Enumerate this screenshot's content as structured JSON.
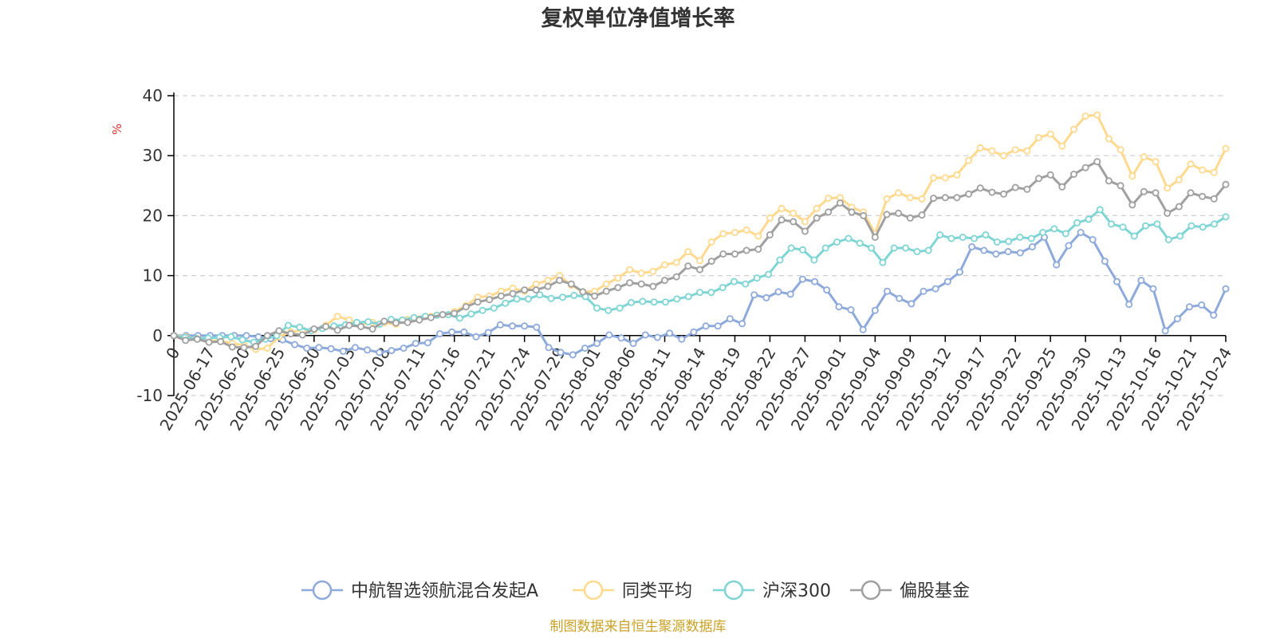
{
  "chart_data": {
    "type": "line",
    "title": "复权单位净值增长率",
    "ylabel": "%",
    "ylim": [
      -10,
      40
    ],
    "yticks": [
      -10,
      0,
      10,
      20,
      30,
      40
    ],
    "grid": true,
    "legend_position": "bottom-center",
    "x_tick_labels": [
      "0",
      "2025-06-17",
      "2025-06-20",
      "2025-06-25",
      "2025-06-30",
      "2025-07-03",
      "2025-07-08",
      "2025-07-11",
      "2025-07-16",
      "2025-07-21",
      "2025-07-24",
      "2025-07-29",
      "2025-08-01",
      "2025-08-06",
      "2025-08-11",
      "2025-08-14",
      "2025-08-19",
      "2025-08-22",
      "2025-08-27",
      "2025-09-01",
      "2025-09-04",
      "2025-09-09",
      "2025-09-12",
      "2025-09-17",
      "2025-09-22",
      "2025-09-25",
      "2025-09-30",
      "2025-10-13",
      "2025-10-16",
      "2025-10-21",
      "2025-10-24"
    ],
    "series": [
      {
        "name": "中航智选领航混合发起A",
        "color": "#8eaadb",
        "values": [
          0,
          0,
          0,
          0,
          0,
          0,
          0,
          -0.2,
          -0.5,
          -0.7,
          -1.5,
          -2.1,
          -2.0,
          -2.2,
          -2.6,
          -2.0,
          -2.4,
          -2.8,
          -2.5,
          -2.1,
          -1.3,
          -1.2,
          0.3,
          0.6,
          0.6,
          -0.2,
          0.5,
          1.8,
          1.6,
          1.6,
          1.4,
          -2.0,
          -2.8,
          -3.2,
          -2.1,
          -1.3,
          0.1,
          -0.4,
          -1.3,
          0.1,
          -0.3,
          0.4,
          -0.6,
          0.6,
          1.6,
          1.6,
          2.8,
          2.0,
          6.8,
          6.3,
          7.3,
          6.9,
          9.4,
          9.0,
          7.6,
          4.8,
          4.3,
          1.0,
          4.2,
          7.4,
          6.2,
          5.3,
          7.4,
          7.8,
          9.0,
          10.6,
          14.8,
          14.2,
          13.6,
          14.0,
          13.8,
          14.8,
          16.4,
          11.8,
          15.0,
          17.2,
          16.0,
          12.4,
          9.0,
          5.2,
          9.2,
          7.8,
          0.8,
          2.8,
          4.8,
          5.1,
          3.4,
          7.8
        ]
      },
      {
        "name": "同类平均",
        "color": "#ffd98e",
        "values": [
          0,
          -0.2,
          -0.5,
          -0.8,
          -0.9,
          -1.3,
          -1.6,
          -2.3,
          -2.1,
          -0.2,
          0.6,
          0.9,
          0.9,
          1.7,
          3.2,
          2.6,
          1.8,
          2.2,
          2.1,
          1.9,
          2.7,
          2.8,
          3.2,
          3.5,
          4.0,
          5.0,
          6.4,
          6.6,
          7.4,
          7.9,
          7.4,
          8.6,
          9.2,
          10.0,
          8.4,
          7.3,
          7.4,
          8.6,
          9.6,
          11.0,
          10.4,
          10.7,
          11.8,
          12.2,
          14.0,
          12.5,
          15.6,
          17.0,
          17.2,
          17.6,
          16.6,
          19.6,
          21.2,
          20.4,
          19.0,
          21.2,
          22.9,
          23.0,
          21.4,
          20.6,
          17.0,
          22.8,
          23.8,
          23.0,
          22.8,
          26.3,
          26.3,
          26.8,
          29.2,
          31.3,
          30.8,
          30.0,
          31.0,
          30.8,
          33.0,
          33.6,
          31.6,
          34.4,
          36.6,
          36.8,
          32.8,
          31.0,
          26.6,
          29.8,
          29.0,
          24.6,
          26.0,
          28.6,
          27.6,
          27.2,
          31.2
        ]
      },
      {
        "name": "沪深300",
        "color": "#7fd4d4",
        "values": [
          0,
          -0.3,
          -0.5,
          -0.4,
          -0.3,
          -0.2,
          -0.7,
          -1.1,
          -0.6,
          0.0,
          1.7,
          1.4,
          0.8,
          1.2,
          1.6,
          1.8,
          2.2,
          2.3,
          1.9,
          2.7,
          2.6,
          3.0,
          3.2,
          3.4,
          3.5,
          2.9,
          3.6,
          4.2,
          4.6,
          5.4,
          6.1,
          6.1,
          6.8,
          6.2,
          6.4,
          6.7,
          6.5,
          4.6,
          4.2,
          4.6,
          5.5,
          5.7,
          5.6,
          5.6,
          6.1,
          6.5,
          7.2,
          7.2,
          8.0,
          9.0,
          8.6,
          9.6,
          10.2,
          12.6,
          14.6,
          14.3,
          12.6,
          14.6,
          15.6,
          16.2,
          15.4,
          14.6,
          12.2,
          14.6,
          14.6,
          14.0,
          14.2,
          16.8,
          16.2,
          16.4,
          16.2,
          16.8,
          15.6,
          15.7,
          16.4,
          16.2,
          17.2,
          17.8,
          17.0,
          18.8,
          19.4,
          21.0,
          18.6,
          18.1,
          16.6,
          18.3,
          18.6,
          16.0,
          16.6,
          18.3,
          18.1,
          18.6,
          19.8
        ]
      },
      {
        "name": "偏股基金",
        "color": "#a0a0a0",
        "values": [
          0,
          -0.8,
          -0.6,
          -1.1,
          -1.0,
          -1.9,
          -2.0,
          -1.8,
          0.0,
          0.8,
          0.3,
          0.1,
          1.1,
          1.5,
          0.9,
          1.7,
          1.5,
          1.1,
          2.4,
          2.1,
          2.2,
          2.6,
          3.0,
          3.5,
          3.7,
          4.8,
          5.6,
          6.0,
          6.6,
          7.0,
          7.6,
          7.6,
          8.2,
          9.2,
          8.6,
          7.3,
          6.6,
          7.4,
          8.0,
          8.8,
          8.6,
          8.2,
          9.2,
          9.8,
          11.6,
          11.0,
          12.4,
          13.6,
          13.6,
          14.2,
          14.4,
          16.8,
          19.3,
          19.0,
          17.4,
          19.6,
          20.6,
          22.1,
          20.6,
          20.0,
          16.4,
          20.2,
          20.4,
          19.6,
          20.1,
          22.9,
          23.0,
          23.0,
          23.6,
          24.6,
          23.9,
          23.6,
          24.7,
          24.4,
          26.2,
          26.8,
          24.8,
          26.9,
          28.0,
          29.0,
          25.8,
          25.0,
          21.8,
          24.0,
          23.8,
          20.4,
          21.5,
          23.8,
          23.2,
          22.8,
          25.2
        ]
      }
    ]
  },
  "source": "制图数据来自恒生聚源数据库"
}
